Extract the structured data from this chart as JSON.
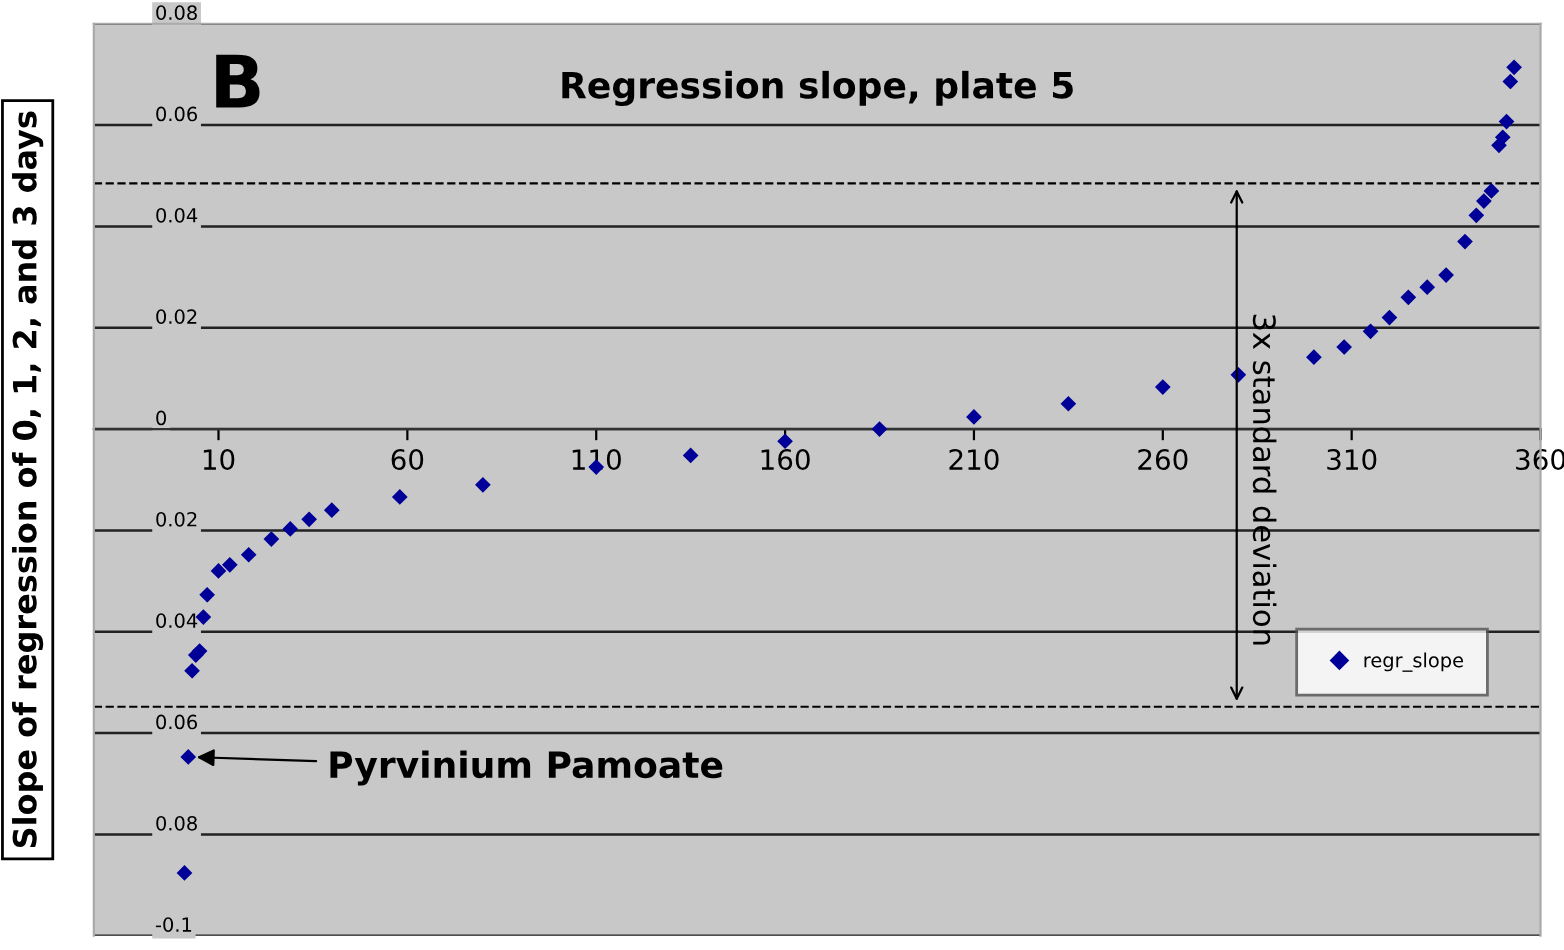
{
  "chart_data": {
    "type": "scatter",
    "title": "Regression slope, plate 5",
    "ylabel": "Slope of regression of 0, 1, 2, and 3 days",
    "series": [
      {
        "name": "regr_slope",
        "color": "#000099",
        "x": [
          1,
          2,
          3,
          4,
          5,
          6,
          7,
          10,
          13,
          18,
          24,
          29,
          34,
          40,
          58,
          80,
          110,
          135,
          160,
          185,
          210,
          235,
          260,
          280,
          300,
          308,
          315,
          320,
          325,
          330,
          335,
          340,
          343,
          345,
          347,
          349,
          350,
          351,
          352,
          353
        ],
        "values": [
          -0.0876,
          -0.0647,
          -0.0477,
          -0.0446,
          -0.0438,
          -0.0371,
          -0.0327,
          -0.028,
          -0.0268,
          -0.0248,
          -0.0217,
          -0.0197,
          -0.0178,
          -0.016,
          -0.0134,
          -0.011,
          -0.0075,
          -0.0052,
          -0.0024,
          0.0,
          0.0024,
          0.005,
          0.0083,
          0.0107,
          0.0142,
          0.0162,
          0.0193,
          0.022,
          0.026,
          0.028,
          0.0304,
          0.037,
          0.0422,
          0.045,
          0.047,
          0.056,
          0.0576,
          0.0607,
          0.0686,
          0.0714
        ]
      }
    ],
    "xlim": [
      -23,
      360
    ],
    "xticks": [
      10,
      60,
      110,
      160,
      210,
      260,
      310,
      360
    ],
    "ylim": [
      -0.1,
      0.08
    ],
    "yticks": [
      {
        "value": -0.1,
        "label": "-0.1"
      },
      {
        "value": -0.08,
        "label": "0.08"
      },
      {
        "value": -0.06,
        "label": "0.06"
      },
      {
        "value": -0.04,
        "label": "0.04"
      },
      {
        "value": -0.02,
        "label": "0.02"
      },
      0,
      0.02,
      0.04,
      0.06,
      0.08
    ],
    "ref_lines": [
      {
        "axis": "y",
        "value": 0.0485,
        "line_style": "dashed",
        "color": "#000000"
      },
      {
        "axis": "y",
        "value": -0.0548,
        "line_style": "dashed",
        "color": "#000000"
      }
    ],
    "annotations": [
      "B",
      "3x standard deviation",
      {
        "text": "Pyrvinium Pamoate",
        "x": 2,
        "y": -0.0647
      }
    ],
    "grid": "y",
    "legend": "right",
    "marker": "diamond"
  }
}
